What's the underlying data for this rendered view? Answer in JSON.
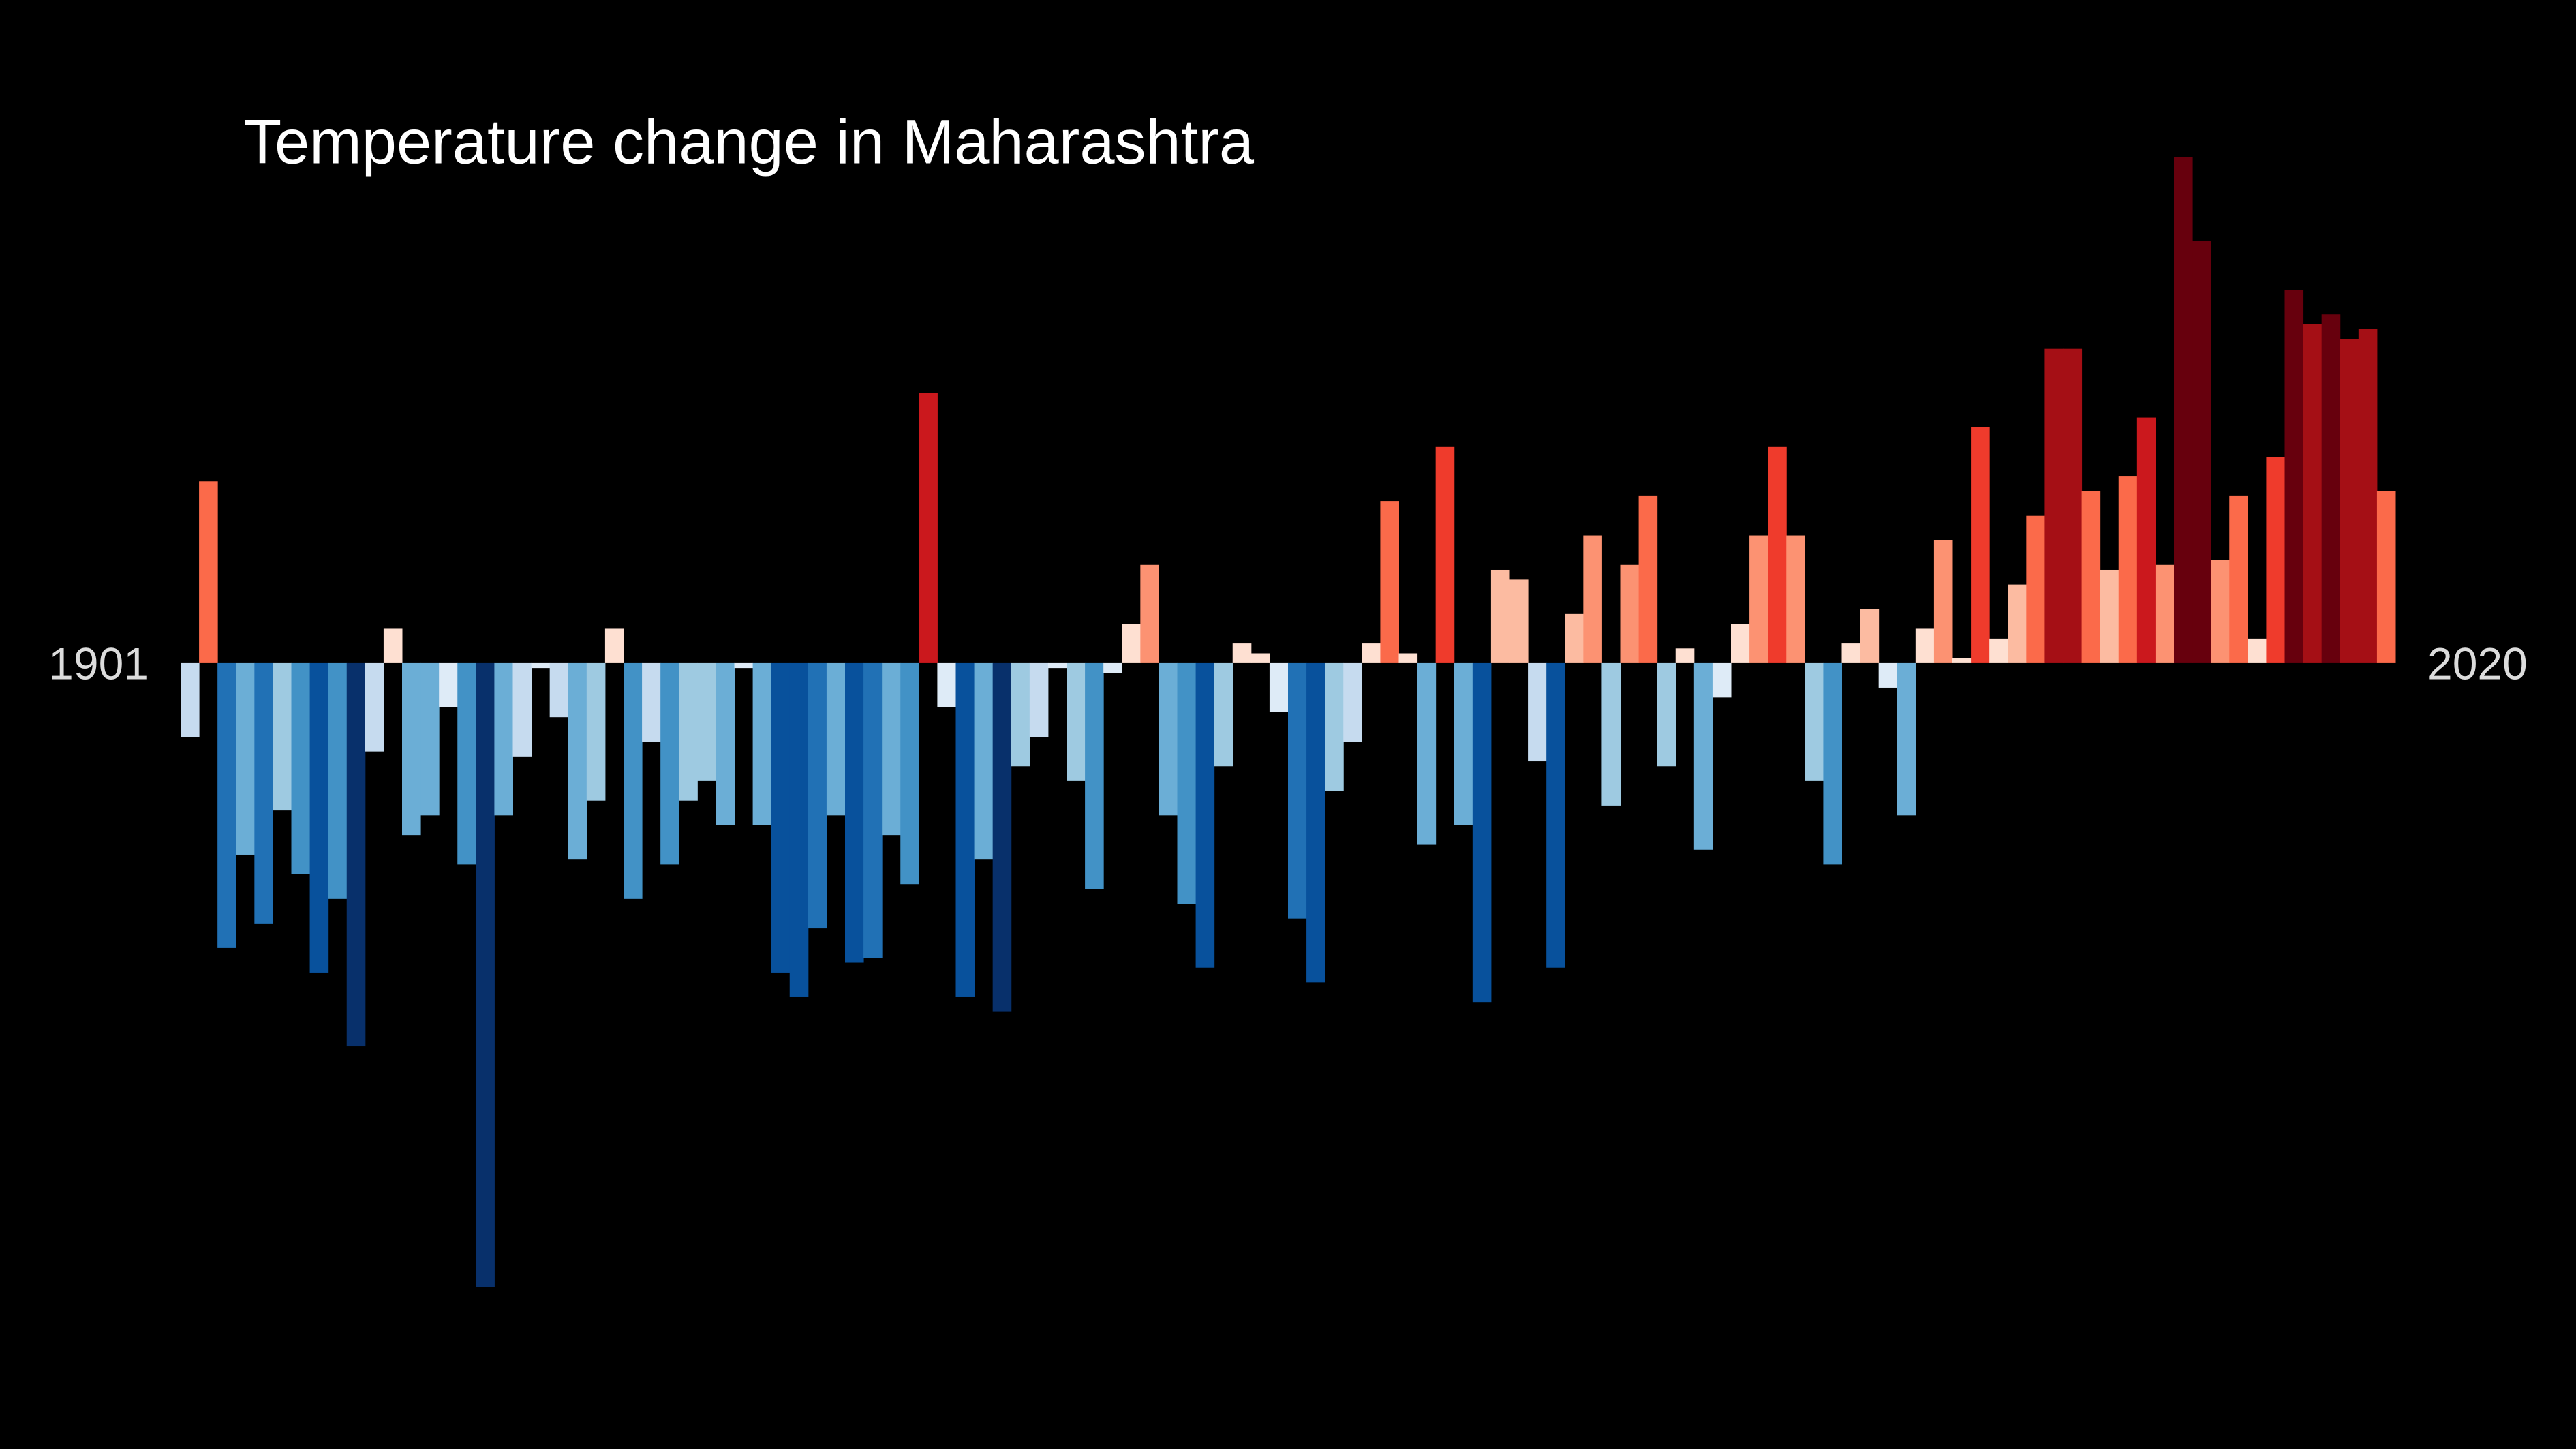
{
  "chart_data": {
    "type": "bar",
    "title": "Temperature change in Maharashtra",
    "categories": [
      "1901",
      null,
      null,
      null,
      null,
      null,
      null,
      null,
      null,
      null,
      null,
      null,
      null,
      null,
      null,
      null,
      null,
      null,
      null,
      null,
      null,
      null,
      null,
      null,
      null,
      null,
      null,
      null,
      null,
      null,
      null,
      null,
      null,
      null,
      null,
      null,
      null,
      null,
      null,
      null,
      null,
      null,
      null,
      null,
      null,
      null,
      null,
      null,
      null,
      null,
      null,
      null,
      null,
      null,
      null,
      null,
      null,
      null,
      null,
      null,
      null,
      null,
      null,
      null,
      null,
      null,
      null,
      null,
      null,
      null,
      null,
      null,
      null,
      null,
      null,
      null,
      null,
      null,
      null,
      null,
      null,
      null,
      null,
      null,
      null,
      null,
      null,
      null,
      null,
      null,
      null,
      null,
      null,
      null,
      null,
      null,
      null,
      null,
      null,
      null,
      null,
      null,
      null,
      null,
      null,
      null,
      null,
      null,
      null,
      null,
      null,
      null,
      null,
      null,
      null,
      null,
      null,
      null,
      null,
      "2020"
    ],
    "values": [
      -0.15,
      0.37,
      -0.58,
      -0.39,
      -0.53,
      -0.3,
      -0.43,
      -0.63,
      -0.48,
      -0.78,
      -0.18,
      0.07,
      -0.35,
      -0.31,
      -0.09,
      -0.41,
      -1.27,
      -0.31,
      -0.19,
      -0.01,
      -0.11,
      -0.4,
      -0.28,
      0.07,
      -0.48,
      -0.16,
      -0.41,
      -0.28,
      -0.24,
      -0.33,
      -0.01,
      -0.33,
      -0.63,
      -0.68,
      -0.54,
      -0.31,
      -0.61,
      -0.6,
      -0.35,
      -0.45,
      0.55,
      -0.09,
      -0.68,
      -0.4,
      -0.71,
      -0.21,
      -0.15,
      -0.01,
      -0.24,
      -0.46,
      -0.02,
      0.08,
      0.2,
      -0.31,
      -0.49,
      -0.62,
      -0.21,
      0.04,
      0.02,
      -0.1,
      -0.52,
      -0.65,
      -0.26,
      -0.16,
      0.04,
      0.33,
      0.02,
      -0.37,
      0.44,
      -0.33,
      -0.69,
      0.19,
      0.17,
      -0.2,
      -0.62,
      0.1,
      0.26,
      -0.29,
      0.2,
      0.34,
      -0.21,
      0.03,
      -0.38,
      -0.07,
      0.08,
      0.26,
      0.44,
      0.26,
      -0.24,
      -0.41,
      0.04,
      0.11,
      -0.05,
      -0.31,
      0.07,
      0.25,
      0.01,
      0.48,
      0.05,
      0.16,
      0.3,
      0.64,
      0.64,
      0.35,
      0.19,
      0.38,
      0.5,
      0.2,
      1.03,
      0.86,
      0.21,
      0.34,
      0.05,
      0.42,
      0.76,
      0.69,
      0.71,
      0.66,
      0.68,
      0.35
    ],
    "ylim": [
      -1.6,
      1.35
    ],
    "colormap": [
      "#08306b",
      "#08519c",
      "#2171b5",
      "#4292c6",
      "#6baed6",
      "#9ecae1",
      "#c6dbef",
      "#deebf7",
      "#fee0d2",
      "#fcbba1",
      "#fc9272",
      "#fb6a4a",
      "#ef3b2c",
      "#cb181d",
      "#a50f15",
      "#67000d"
    ],
    "clim": [
      -0.8,
      0.8
    ]
  }
}
